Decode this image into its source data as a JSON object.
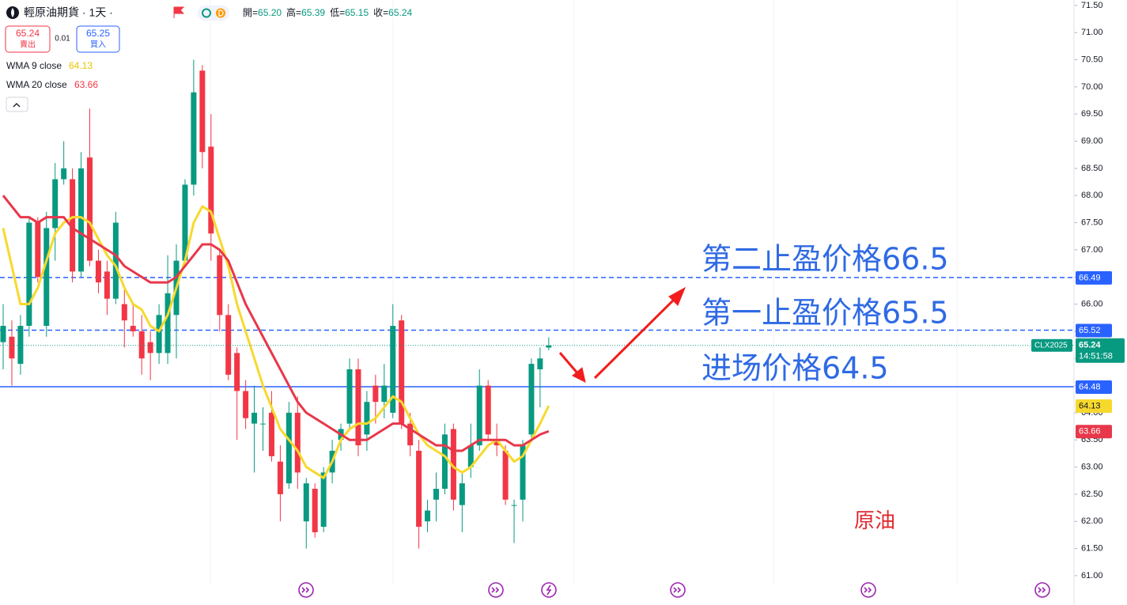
{
  "chart_data": {
    "type": "candlestick",
    "title": "輕原油期貨 · 1天 ·",
    "header": [
      {
        "label": "開=",
        "value": "65.20"
      },
      {
        "label": "高=",
        "value": "65.39"
      },
      {
        "label": "低=",
        "value": "65.15"
      },
      {
        "label": "收=",
        "value": "65.24"
      }
    ],
    "quote": {
      "sell_price": "65.24",
      "sell_label": "賣出",
      "spread": "0.01",
      "buy_price": "65.25",
      "buy_label": "買入"
    },
    "up_color": "#089981",
    "down_color": "#f23645",
    "open": [
      65.3,
      65.4,
      64.9,
      65.6,
      67.5,
      65.6,
      67.4,
      68.3,
      68.3,
      66.6,
      68.7,
      66.8,
      66.6,
      66.1,
      66.0,
      65.6,
      65.5,
      65.3,
      65.1,
      65.1,
      65.8,
      66.8,
      68.2,
      70.3,
      68.9,
      66.9,
      65.8,
      65.1,
      64.4,
      63.8,
      63.8,
      64.0,
      63.1,
      62.7,
      64.0,
      62.0,
      62.6,
      61.9,
      62.9,
      63.5,
      63.8,
      64.8,
      63.6,
      64.5,
      64.2,
      64.0,
      65.7,
      63.8,
      63.3,
      62.0,
      62.4,
      62.6,
      63.7,
      62.3,
      63.0,
      63.4,
      64.5,
      63.5,
      63.3,
      62.3,
      62.4,
      63.6,
      64.8,
      65.2
    ],
    "high": [
      66.0,
      65.7,
      65.8,
      67.6,
      67.6,
      67.7,
      68.6,
      69.0,
      68.5,
      68.8,
      69.6,
      67.0,
      66.8,
      67.7,
      66.3,
      66.0,
      65.8,
      65.5,
      66.0,
      66.9,
      67.1,
      68.3,
      70.5,
      70.4,
      69.5,
      67.0,
      66.0,
      65.2,
      64.6,
      64.5,
      64.1,
      64.4,
      63.4,
      64.2,
      64.3,
      62.8,
      62.7,
      63.0,
      63.5,
      63.8,
      65.0,
      65.0,
      64.4,
      64.7,
      64.9,
      66.0,
      65.8,
      64.0,
      63.5,
      62.4,
      62.9,
      63.8,
      63.8,
      62.9,
      63.8,
      64.8,
      64.6,
      63.8,
      63.4,
      62.4,
      63.5,
      65.0,
      65.2,
      65.39
    ],
    "low": [
      64.8,
      64.5,
      64.7,
      65.4,
      66.4,
      65.4,
      66.8,
      68.2,
      66.4,
      66.5,
      66.7,
      66.2,
      65.8,
      66.0,
      65.2,
      65.4,
      64.7,
      64.6,
      64.9,
      64.9,
      65.0,
      66.7,
      68.0,
      68.5,
      66.8,
      65.5,
      64.6,
      63.5,
      63.7,
      62.9,
      63.3,
      63.1,
      62.0,
      62.6,
      62.6,
      61.5,
      61.7,
      61.8,
      62.7,
      63.3,
      63.7,
      63.2,
      63.3,
      63.8,
      63.9,
      63.9,
      63.7,
      63.2,
      61.5,
      61.8,
      62.0,
      62.5,
      62.2,
      61.8,
      62.8,
      63.3,
      63.5,
      63.2,
      62.3,
      61.6,
      62.0,
      63.5,
      64.1,
      65.15
    ],
    "close": [
      65.6,
      65.0,
      65.6,
      67.5,
      66.5,
      67.4,
      68.3,
      68.5,
      66.6,
      68.5,
      66.8,
      66.4,
      66.1,
      67.5,
      65.7,
      65.5,
      65.0,
      65.1,
      65.8,
      66.2,
      66.8,
      68.2,
      69.9,
      68.8,
      67.3,
      65.8,
      64.7,
      64.4,
      63.9,
      64.0,
      63.8,
      63.2,
      62.5,
      64.0,
      62.9,
      62.7,
      61.8,
      62.9,
      63.3,
      63.7,
      64.8,
      63.4,
      64.2,
      64.2,
      64.5,
      65.6,
      63.8,
      63.4,
      61.9,
      62.2,
      62.6,
      63.6,
      62.4,
      62.7,
      63.4,
      64.5,
      63.6,
      63.4,
      62.4,
      62.3,
      63.4,
      64.9,
      65.0,
      65.24
    ],
    "series": [
      {
        "name": "WMA 9 close",
        "color": "#f7d92d",
        "values": [
          67.4,
          66.7,
          66.0,
          66.0,
          66.3,
          66.8,
          67.3,
          67.5,
          67.6,
          67.6,
          67.5,
          67.2,
          66.9,
          66.7,
          66.3,
          66.0,
          65.9,
          65.6,
          65.5,
          65.8,
          66.3,
          66.8,
          67.5,
          67.8,
          67.7,
          67.2,
          66.7,
          66.0,
          65.5,
          65.0,
          64.5,
          64.1,
          63.7,
          63.5,
          63.3,
          63.0,
          62.9,
          62.8,
          63.1,
          63.5,
          63.7,
          63.8,
          63.8,
          63.9,
          64.1,
          64.3,
          64.2,
          63.9,
          63.6,
          63.4,
          63.3,
          63.2,
          63.0,
          62.9,
          63.0,
          63.2,
          63.4,
          63.5,
          63.3,
          63.1,
          63.2,
          63.5,
          63.8,
          64.13
        ]
      },
      {
        "name": "WMA 20 close",
        "color": "#e8374a",
        "values": [
          68.0,
          67.8,
          67.6,
          67.6,
          67.5,
          67.6,
          67.6,
          67.6,
          67.4,
          67.3,
          67.2,
          67.1,
          67.0,
          66.9,
          66.7,
          66.6,
          66.5,
          66.4,
          66.4,
          66.4,
          66.5,
          66.7,
          66.9,
          67.1,
          67.1,
          67.0,
          66.8,
          66.4,
          66.0,
          65.7,
          65.4,
          65.1,
          64.8,
          64.5,
          64.2,
          64.0,
          63.9,
          63.8,
          63.7,
          63.6,
          63.5,
          63.5,
          63.5,
          63.6,
          63.7,
          63.8,
          63.8,
          63.7,
          63.6,
          63.5,
          63.4,
          63.4,
          63.3,
          63.3,
          63.4,
          63.5,
          63.5,
          63.5,
          63.5,
          63.4,
          63.4,
          63.5,
          63.6,
          63.66
        ]
      }
    ],
    "levels": [
      {
        "value": 66.49,
        "style": "dashed"
      },
      {
        "value": 65.52,
        "style": "dashed"
      },
      {
        "value": 64.48,
        "style": "solid"
      }
    ],
    "level_color": "#2962ff",
    "symbol": "CLX2025",
    "countdown": "14:51:58",
    "annotations": [
      "第二止盈价格66.5",
      "第一止盈价格65.5",
      "进场价格64.5",
      "原油"
    ],
    "ylim": [
      60.46,
      71.6
    ],
    "yticks": [
      {
        "value": 61,
        "label": "61.00"
      },
      {
        "value": 61.5,
        "label": "61.50"
      },
      {
        "value": 62,
        "label": "62.00"
      },
      {
        "value": 62.5,
        "label": "62.50"
      },
      {
        "value": 63,
        "label": "63.00"
      },
      {
        "value": 63.5,
        "label": "63.50"
      },
      {
        "value": 64,
        "label": "64.00"
      },
      {
        "value": 64.5,
        "label": "64.50"
      },
      {
        "value": 65,
        "label": "65.00"
      },
      {
        "value": 65.5,
        "label": "65.50"
      },
      {
        "value": 66,
        "label": "66.00"
      },
      {
        "value": 66.5,
        "label": "66.50"
      },
      {
        "value": 67,
        "label": "67.00"
      },
      {
        "value": 67.5,
        "label": "67.50"
      },
      {
        "value": 68,
        "label": "68.00"
      },
      {
        "value": 68.5,
        "label": "68.50"
      },
      {
        "value": 69,
        "label": "69.00"
      },
      {
        "value": 69.5,
        "label": "69.50"
      },
      {
        "value": 70,
        "label": "70.00"
      },
      {
        "value": 70.5,
        "label": "70.50"
      },
      {
        "value": 71,
        "label": "71.00"
      },
      {
        "value": 71.5,
        "label": "71.50"
      }
    ]
  }
}
